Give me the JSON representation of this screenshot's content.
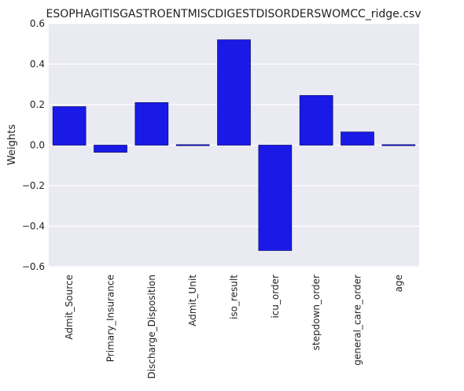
{
  "chart_data": {
    "type": "bar",
    "title": "ESOPHAGITISGASTROENTMISCDIGESTDISORDERSWOMCC_ridge.csv",
    "xlabel": "",
    "ylabel": "Weights",
    "categories": [
      "Admit_Source",
      "Primary_Insurance",
      "Discharge_Disposition",
      "Admit_Unit",
      "iso_result",
      "icu_order",
      "stepdown_order",
      "general_care_order",
      "age"
    ],
    "values": [
      0.19,
      -0.035,
      0.21,
      0.003,
      0.52,
      -0.52,
      0.245,
      0.065,
      0.003
    ],
    "ylim": [
      -0.6,
      0.6
    ],
    "yticks": [
      -0.6,
      -0.4,
      -0.2,
      0.0,
      0.2,
      0.4,
      0.6
    ],
    "ytick_labels": [
      "−0.6",
      "−0.4",
      "−0.2",
      "0.0",
      "0.2",
      "0.4",
      "0.6"
    ],
    "grid": true,
    "colors": {
      "bar": "#1a1ae6",
      "bar_edge": "#0d0d80",
      "plot_background": "#eaeaf2",
      "grid": "#ffffff"
    }
  }
}
